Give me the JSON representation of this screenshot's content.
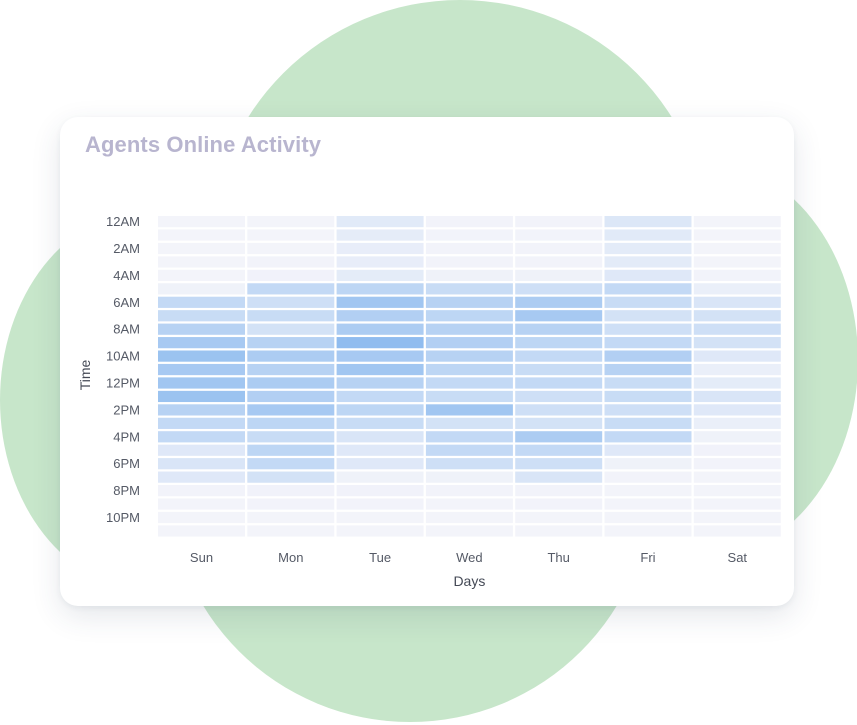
{
  "colors": {
    "background_blob": "#c7e6ca",
    "card": "#ffffff",
    "title": "#b8b5cf",
    "cell_low": "#f5f5fa",
    "cell_high": "#85b6ee"
  },
  "card": {
    "title": "Agents Online Activity"
  },
  "chart_data": {
    "type": "heatmap",
    "title": "Agents Online Activity",
    "xlabel": "Days",
    "ylabel": "Time",
    "x_categories": [
      "Sun",
      "Mon",
      "Tue",
      "Wed",
      "Thu",
      "Fri",
      "Sat"
    ],
    "y_tick_labels": [
      "12AM",
      "2AM",
      "4AM",
      "6AM",
      "8AM",
      "10AM",
      "12PM",
      "2PM",
      "4PM",
      "6PM",
      "8PM",
      "10PM"
    ],
    "y_rows": 24,
    "value_range": [
      0,
      1
    ],
    "grid": false,
    "legend": "none",
    "values": [
      [
        0.02,
        0.02,
        0.18,
        0.03,
        0.03,
        0.22,
        0.02
      ],
      [
        0.02,
        0.02,
        0.14,
        0.03,
        0.03,
        0.18,
        0.02
      ],
      [
        0.02,
        0.02,
        0.12,
        0.03,
        0.03,
        0.16,
        0.02
      ],
      [
        0.02,
        0.03,
        0.12,
        0.03,
        0.03,
        0.16,
        0.02
      ],
      [
        0.02,
        0.04,
        0.15,
        0.05,
        0.05,
        0.2,
        0.03
      ],
      [
        0.05,
        0.45,
        0.5,
        0.4,
        0.35,
        0.45,
        0.1
      ],
      [
        0.45,
        0.35,
        0.75,
        0.55,
        0.65,
        0.4,
        0.25
      ],
      [
        0.4,
        0.4,
        0.6,
        0.5,
        0.7,
        0.3,
        0.3
      ],
      [
        0.55,
        0.3,
        0.65,
        0.55,
        0.55,
        0.35,
        0.35
      ],
      [
        0.7,
        0.55,
        0.9,
        0.6,
        0.5,
        0.45,
        0.3
      ],
      [
        0.8,
        0.65,
        0.7,
        0.55,
        0.45,
        0.6,
        0.2
      ],
      [
        0.7,
        0.55,
        0.75,
        0.5,
        0.4,
        0.55,
        0.1
      ],
      [
        0.75,
        0.65,
        0.55,
        0.45,
        0.45,
        0.4,
        0.15
      ],
      [
        0.8,
        0.6,
        0.45,
        0.4,
        0.35,
        0.4,
        0.25
      ],
      [
        0.55,
        0.7,
        0.5,
        0.75,
        0.35,
        0.35,
        0.2
      ],
      [
        0.45,
        0.5,
        0.4,
        0.3,
        0.3,
        0.4,
        0.1
      ],
      [
        0.45,
        0.4,
        0.25,
        0.45,
        0.65,
        0.45,
        0.05
      ],
      [
        0.2,
        0.5,
        0.2,
        0.45,
        0.45,
        0.2,
        0.04
      ],
      [
        0.25,
        0.45,
        0.2,
        0.35,
        0.35,
        0.05,
        0.03
      ],
      [
        0.2,
        0.3,
        0.05,
        0.05,
        0.25,
        0.03,
        0.02
      ],
      [
        0.03,
        0.04,
        0.04,
        0.03,
        0.03,
        0.02,
        0.02
      ],
      [
        0.02,
        0.03,
        0.03,
        0.02,
        0.03,
        0.02,
        0.02
      ],
      [
        0.02,
        0.02,
        0.02,
        0.02,
        0.02,
        0.02,
        0.02
      ],
      [
        0.02,
        0.02,
        0.02,
        0.02,
        0.02,
        0.02,
        0.02
      ]
    ]
  }
}
